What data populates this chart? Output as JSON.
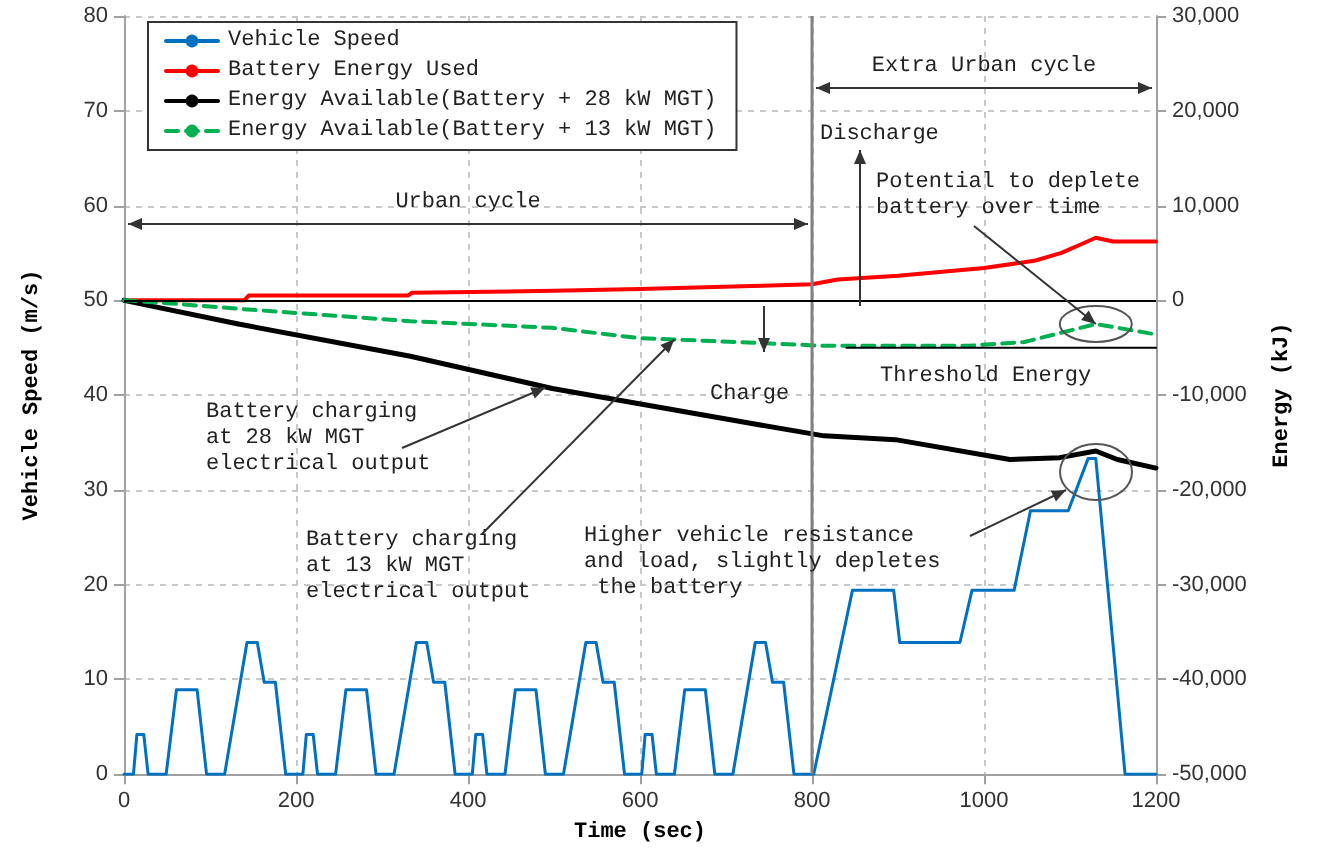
{
  "chart_data": {
    "type": "line",
    "xlabel": "Time (sec)",
    "ylabel": "Vehicle Speed (m/s)",
    "y2label": "Energy (kJ)",
    "xlim": [
      0,
      1200
    ],
    "xticks": [
      0,
      200,
      400,
      600,
      800,
      1000,
      1200
    ],
    "ylim": [
      0,
      80
    ],
    "yticks": [
      0,
      10,
      20,
      30,
      40,
      50,
      60,
      70,
      80
    ],
    "y2lim": [
      -50000,
      30000
    ],
    "y2ticks": [
      {
        "value": -50000,
        "label": "-50,000"
      },
      {
        "value": -40000,
        "label": "-40,000"
      },
      {
        "value": -30000,
        "label": "-30,000"
      },
      {
        "value": -20000,
        "label": "-20,000"
      },
      {
        "value": -10000,
        "label": "-10,000"
      },
      0,
      {
        "value": 10000,
        "label": "10,000"
      },
      {
        "value": 20000,
        "label": "20,000"
      },
      {
        "value": 30000,
        "label": "30,000"
      }
    ],
    "grid": true,
    "legend": "top left",
    "marker": "none",
    "series": [
      {
        "name": "Vehicle Speed",
        "color": "#0070c0",
        "x": [
          0,
          11,
          15,
          23,
          28,
          49,
          61,
          85,
          96,
          117,
          143,
          155,
          163,
          176,
          188,
          208,
          212,
          220,
          225,
          246,
          258,
          282,
          293,
          314,
          340,
          352,
          360,
          373,
          385,
          405,
          409,
          417,
          422,
          443,
          455,
          479,
          490,
          511,
          537,
          549,
          557,
          570,
          582,
          602,
          606,
          614,
          619,
          640,
          652,
          676,
          687,
          708,
          734,
          746,
          754,
          767,
          779,
          802,
          847,
          895,
          902,
          972,
          986,
          1035,
          1054,
          1098,
          1121,
          1130,
          1164,
          1200
        ],
        "values": [
          0,
          0,
          4.2,
          4.2,
          0,
          0,
          8.9,
          8.9,
          0,
          0,
          13.9,
          13.9,
          9.7,
          9.7,
          0,
          0,
          4.2,
          4.2,
          0,
          0,
          8.9,
          8.9,
          0,
          0,
          13.9,
          13.9,
          9.7,
          9.7,
          0,
          0,
          4.2,
          4.2,
          0,
          0,
          8.9,
          8.9,
          0,
          0,
          13.9,
          13.9,
          9.7,
          9.7,
          0,
          0,
          4.2,
          4.2,
          0,
          0,
          8.9,
          8.9,
          0,
          0,
          13.9,
          13.9,
          9.7,
          9.7,
          0,
          0,
          19.4,
          19.4,
          13.9,
          13.9,
          19.4,
          19.4,
          27.8,
          27.8,
          33.3,
          33.3,
          0,
          0
        ]
      },
      {
        "name": "Battery Energy Used",
        "color": "#ff0000",
        "axis": "y2",
        "x": [
          0,
          140,
          145,
          330,
          335,
          500,
          600,
          730,
          800,
          830,
          900,
          1000,
          1060,
          1090,
          1115,
          1130,
          1150,
          1200
        ],
        "values": [
          0,
          0,
          500,
          500,
          800,
          1000,
          1200,
          1500,
          1700,
          2200,
          2600,
          3400,
          4200,
          5000,
          6000,
          6600,
          6200,
          6200
        ]
      },
      {
        "name": "Energy Available(Battery + 28 kW MGT)",
        "color": "#000000",
        "axis": "y2",
        "x": [
          0,
          133,
          333,
          498,
          730,
          814,
          897,
          1030,
          1088,
          1130,
          1155,
          1200
        ],
        "values": [
          0,
          -2500,
          -5900,
          -9300,
          -13000,
          -14300,
          -14700,
          -16800,
          -16600,
          -15900,
          -16800,
          -17700
        ]
      },
      {
        "name": "Energy Available(Battery + 13 kW MGT)",
        "color": "#00b050",
        "axis": "y2",
        "line_style": "dashed",
        "x": [
          0,
          50,
          149,
          333,
          498,
          600,
          714,
          814,
          981,
          1047,
          1130,
          1200
        ],
        "values": [
          0,
          -300,
          -1000,
          -2200,
          -2900,
          -4000,
          -4400,
          -4800,
          -4800,
          -4400,
          -2500,
          -3600
        ]
      },
      {
        "color": "#000000",
        "axis": "y2",
        "x": [
          840,
          1200
        ],
        "values": [
          -5000,
          -5000
        ]
      }
    ],
    "ref_lines": [
      {
        "axis": "x",
        "value": 800,
        "color": "#808080"
      },
      {
        "axis": "y2",
        "value": 0,
        "color": "#000000"
      }
    ],
    "annotations": [
      "Urban cycle",
      "Extra Urban cycle",
      "Discharge",
      "Charge",
      {
        "text": "Potential to deplete battery over time",
        "x": 1130,
        "y": 47.5
      },
      "Threshold Energy",
      {
        "text": "Battery charging at 28 kW MGT electrical output",
        "x": 490,
        "y": 40.8
      },
      {
        "text": "Battery charging at 13 kW MGT electrical output",
        "x": 640,
        "y": 45.9
      },
      "Higher vehicle resistance and load, slightly depletes the battery"
    ]
  }
}
